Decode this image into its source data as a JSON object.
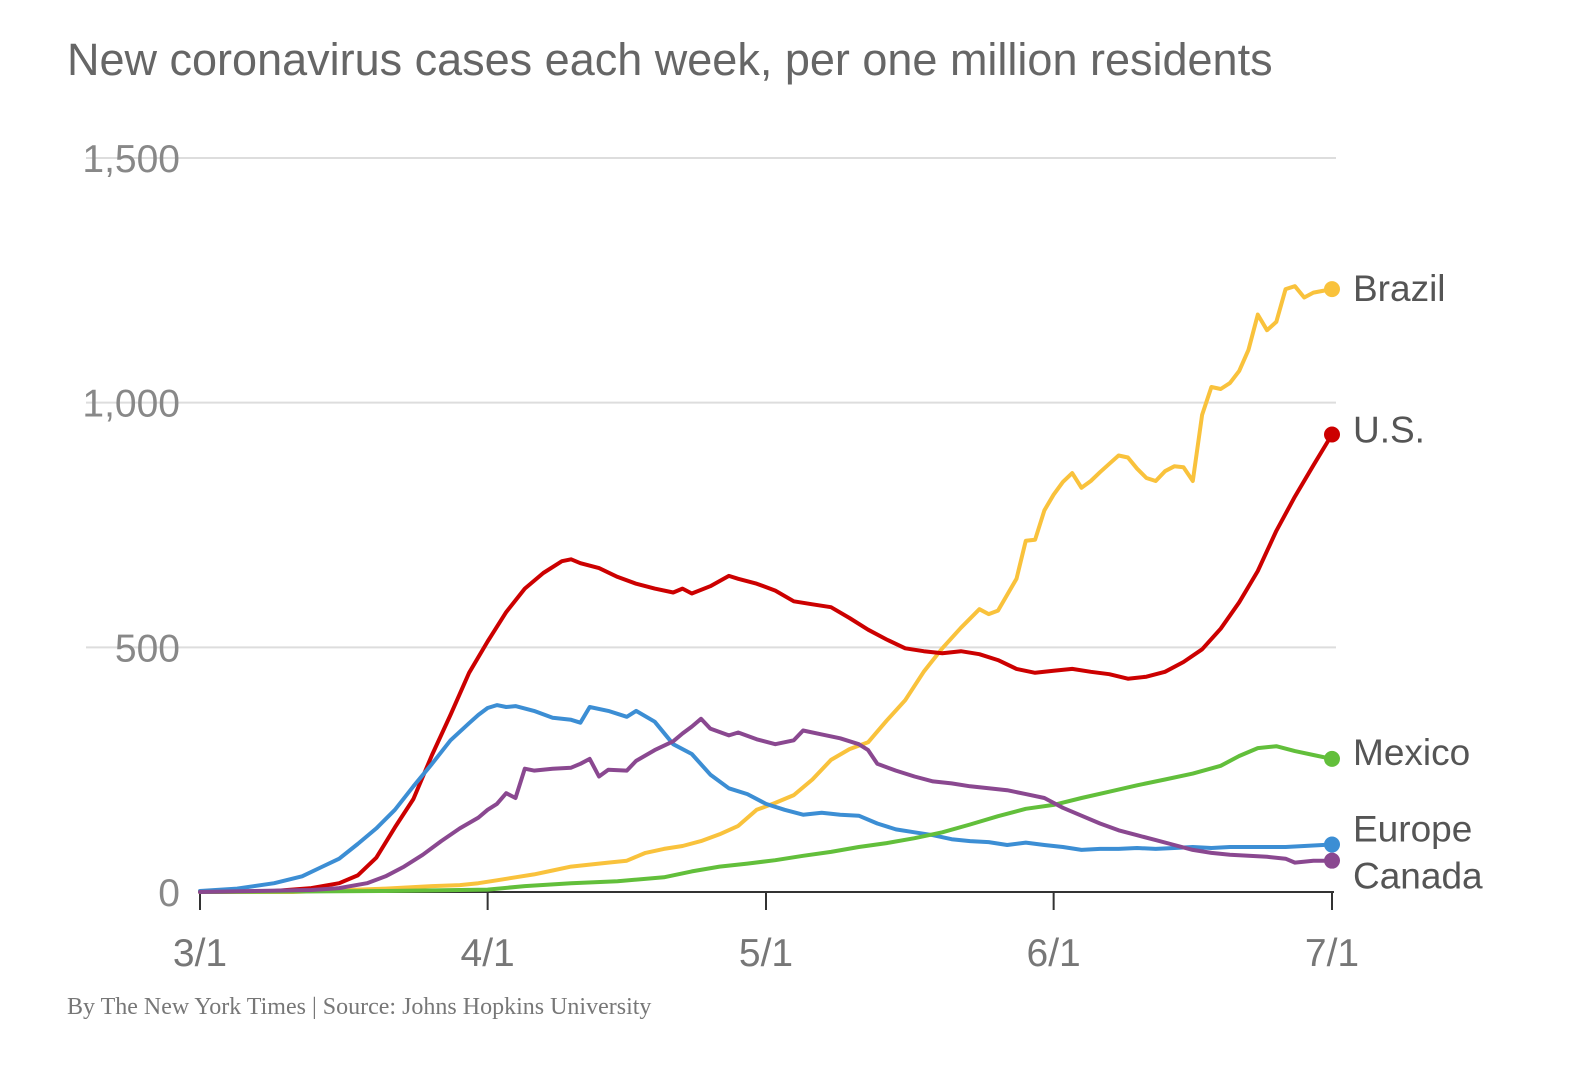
{
  "chart_data": {
    "type": "line",
    "title": "New coronavirus cases each week, per one million residents",
    "xlabel": "",
    "ylabel": "",
    "ylim": [
      0,
      1500
    ],
    "xlim": [
      "3/1",
      "7/1"
    ],
    "y_ticks": [
      {
        "value": 0,
        "label": "0"
      },
      {
        "value": 500,
        "label": "500"
      },
      {
        "value": 1000,
        "label": "1,000"
      },
      {
        "value": 1500,
        "label": "1,500"
      }
    ],
    "x_ticks": [
      {
        "day": 0,
        "label": "3/1"
      },
      {
        "day": 31,
        "label": "4/1"
      },
      {
        "day": 61,
        "label": "5/1"
      },
      {
        "day": 92,
        "label": "6/1"
      },
      {
        "day": 122,
        "label": "7/1"
      }
    ],
    "grid": true,
    "legend": "direct labels at line ends",
    "source": "By The New York Times | Source: Johns Hopkins University",
    "series": [
      {
        "name": "Brazil",
        "color": "#f9c23c",
        "points": [
          [
            0,
            0
          ],
          [
            10,
            0
          ],
          [
            20,
            7
          ],
          [
            25,
            12
          ],
          [
            28,
            14
          ],
          [
            30,
            18
          ],
          [
            32,
            24
          ],
          [
            34,
            30
          ],
          [
            36,
            36
          ],
          [
            38,
            44
          ],
          [
            40,
            52
          ],
          [
            42,
            56
          ],
          [
            44,
            60
          ],
          [
            46,
            64
          ],
          [
            48,
            80
          ],
          [
            50,
            88
          ],
          [
            52,
            94
          ],
          [
            54,
            104
          ],
          [
            56,
            118
          ],
          [
            58,
            135
          ],
          [
            60,
            168
          ],
          [
            62,
            182
          ],
          [
            64,
            198
          ],
          [
            66,
            230
          ],
          [
            68,
            270
          ],
          [
            70,
            292
          ],
          [
            72,
            306
          ],
          [
            74,
            350
          ],
          [
            76,
            392
          ],
          [
            78,
            450
          ],
          [
            80,
            498
          ],
          [
            82,
            540
          ],
          [
            84,
            578
          ],
          [
            85,
            568
          ],
          [
            86,
            575
          ],
          [
            88,
            640
          ],
          [
            89,
            718
          ],
          [
            90,
            720
          ],
          [
            91,
            780
          ],
          [
            92,
            812
          ],
          [
            93,
            838
          ],
          [
            94,
            856
          ],
          [
            95,
            826
          ],
          [
            96,
            840
          ],
          [
            97,
            858
          ],
          [
            98,
            875
          ],
          [
            99,
            892
          ],
          [
            100,
            888
          ],
          [
            101,
            865
          ],
          [
            102,
            846
          ],
          [
            103,
            840
          ],
          [
            104,
            860
          ],
          [
            105,
            870
          ],
          [
            106,
            868
          ],
          [
            107,
            840
          ],
          [
            108,
            975
          ],
          [
            109,
            1032
          ],
          [
            110,
            1028
          ],
          [
            111,
            1040
          ],
          [
            112,
            1065
          ],
          [
            113,
            1108
          ],
          [
            114,
            1180
          ],
          [
            115,
            1148
          ],
          [
            116,
            1165
          ],
          [
            117,
            1232
          ],
          [
            118,
            1238
          ],
          [
            119,
            1215
          ],
          [
            120,
            1225
          ],
          [
            122,
            1232
          ]
        ]
      },
      {
        "name": "U.S.",
        "color": "#cc0000",
        "points": [
          [
            0,
            0
          ],
          [
            8,
            2
          ],
          [
            12,
            8
          ],
          [
            15,
            18
          ],
          [
            17,
            34
          ],
          [
            19,
            70
          ],
          [
            21,
            132
          ],
          [
            23,
            190
          ],
          [
            25,
            280
          ],
          [
            27,
            362
          ],
          [
            29,
            448
          ],
          [
            31,
            512
          ],
          [
            33,
            572
          ],
          [
            35,
            620
          ],
          [
            37,
            652
          ],
          [
            39,
            676
          ],
          [
            40,
            680
          ],
          [
            41,
            672
          ],
          [
            43,
            662
          ],
          [
            45,
            644
          ],
          [
            47,
            630
          ],
          [
            49,
            620
          ],
          [
            51,
            612
          ],
          [
            52,
            620
          ],
          [
            53,
            610
          ],
          [
            55,
            625
          ],
          [
            57,
            646
          ],
          [
            58,
            640
          ],
          [
            60,
            630
          ],
          [
            62,
            616
          ],
          [
            64,
            594
          ],
          [
            66,
            588
          ],
          [
            68,
            582
          ],
          [
            70,
            560
          ],
          [
            72,
            536
          ],
          [
            74,
            516
          ],
          [
            76,
            498
          ],
          [
            78,
            492
          ],
          [
            80,
            488
          ],
          [
            82,
            492
          ],
          [
            84,
            486
          ],
          [
            86,
            474
          ],
          [
            88,
            456
          ],
          [
            90,
            448
          ],
          [
            92,
            452
          ],
          [
            94,
            456
          ],
          [
            96,
            450
          ],
          [
            98,
            445
          ],
          [
            100,
            436
          ],
          [
            102,
            440
          ],
          [
            104,
            450
          ],
          [
            106,
            470
          ],
          [
            108,
            496
          ],
          [
            110,
            538
          ],
          [
            112,
            592
          ],
          [
            114,
            656
          ],
          [
            116,
            738
          ],
          [
            118,
            808
          ],
          [
            120,
            872
          ],
          [
            122,
            935
          ]
        ]
      },
      {
        "name": "Europe",
        "color": "#3c8ed4",
        "points": [
          [
            0,
            2
          ],
          [
            4,
            7
          ],
          [
            8,
            18
          ],
          [
            11,
            32
          ],
          [
            13,
            50
          ],
          [
            15,
            68
          ],
          [
            17,
            98
          ],
          [
            19,
            130
          ],
          [
            21,
            168
          ],
          [
            23,
            216
          ],
          [
            25,
            262
          ],
          [
            27,
            310
          ],
          [
            29,
            345
          ],
          [
            30,
            362
          ],
          [
            31,
            376
          ],
          [
            32,
            382
          ],
          [
            33,
            378
          ],
          [
            34,
            380
          ],
          [
            36,
            370
          ],
          [
            38,
            356
          ],
          [
            40,
            352
          ],
          [
            41,
            346
          ],
          [
            42,
            378
          ],
          [
            44,
            370
          ],
          [
            46,
            358
          ],
          [
            47,
            370
          ],
          [
            49,
            348
          ],
          [
            51,
            302
          ],
          [
            53,
            282
          ],
          [
            55,
            240
          ],
          [
            57,
            212
          ],
          [
            59,
            200
          ],
          [
            61,
            180
          ],
          [
            63,
            168
          ],
          [
            65,
            158
          ],
          [
            67,
            162
          ],
          [
            69,
            158
          ],
          [
            71,
            156
          ],
          [
            73,
            140
          ],
          [
            75,
            128
          ],
          [
            77,
            122
          ],
          [
            79,
            116
          ],
          [
            81,
            108
          ],
          [
            83,
            104
          ],
          [
            85,
            102
          ],
          [
            87,
            96
          ],
          [
            89,
            101
          ],
          [
            91,
            96
          ],
          [
            93,
            92
          ],
          [
            95,
            86
          ],
          [
            97,
            88
          ],
          [
            99,
            88
          ],
          [
            101,
            90
          ],
          [
            103,
            88
          ],
          [
            105,
            90
          ],
          [
            107,
            92
          ],
          [
            109,
            90
          ],
          [
            111,
            92
          ],
          [
            113,
            92
          ],
          [
            115,
            92
          ],
          [
            117,
            92
          ],
          [
            119,
            94
          ],
          [
            122,
            97
          ]
        ]
      },
      {
        "name": "Mexico",
        "color": "#62bf3b",
        "points": [
          [
            0,
            0
          ],
          [
            20,
            2
          ],
          [
            31,
            5
          ],
          [
            35,
            12
          ],
          [
            40,
            18
          ],
          [
            45,
            22
          ],
          [
            50,
            30
          ],
          [
            53,
            42
          ],
          [
            56,
            52
          ],
          [
            59,
            58
          ],
          [
            62,
            65
          ],
          [
            65,
            74
          ],
          [
            68,
            82
          ],
          [
            71,
            92
          ],
          [
            74,
            100
          ],
          [
            77,
            110
          ],
          [
            80,
            122
          ],
          [
            83,
            138
          ],
          [
            86,
            155
          ],
          [
            89,
            170
          ],
          [
            92,
            178
          ],
          [
            95,
            192
          ],
          [
            98,
            205
          ],
          [
            101,
            218
          ],
          [
            104,
            230
          ],
          [
            107,
            242
          ],
          [
            110,
            258
          ],
          [
            112,
            278
          ],
          [
            114,
            294
          ],
          [
            116,
            298
          ],
          [
            118,
            288
          ],
          [
            120,
            280
          ],
          [
            122,
            272
          ]
        ]
      },
      {
        "name": "Canada",
        "color": "#8a4890",
        "points": [
          [
            0,
            0
          ],
          [
            12,
            4
          ],
          [
            15,
            8
          ],
          [
            18,
            18
          ],
          [
            20,
            32
          ],
          [
            22,
            52
          ],
          [
            24,
            76
          ],
          [
            26,
            104
          ],
          [
            28,
            130
          ],
          [
            30,
            152
          ],
          [
            31,
            168
          ],
          [
            32,
            180
          ],
          [
            33,
            202
          ],
          [
            34,
            192
          ],
          [
            35,
            252
          ],
          [
            36,
            248
          ],
          [
            38,
            252
          ],
          [
            40,
            254
          ],
          [
            41,
            262
          ],
          [
            42,
            272
          ],
          [
            43,
            236
          ],
          [
            44,
            250
          ],
          [
            46,
            248
          ],
          [
            47,
            268
          ],
          [
            49,
            290
          ],
          [
            51,
            308
          ],
          [
            52,
            324
          ],
          [
            53,
            338
          ],
          [
            54,
            354
          ],
          [
            55,
            334
          ],
          [
            57,
            320
          ],
          [
            58,
            326
          ],
          [
            60,
            312
          ],
          [
            62,
            302
          ],
          [
            64,
            310
          ],
          [
            65,
            330
          ],
          [
            67,
            322
          ],
          [
            69,
            314
          ],
          [
            71,
            302
          ],
          [
            72,
            290
          ],
          [
            73,
            262
          ],
          [
            75,
            248
          ],
          [
            77,
            236
          ],
          [
            79,
            226
          ],
          [
            81,
            222
          ],
          [
            83,
            216
          ],
          [
            85,
            212
          ],
          [
            87,
            208
          ],
          [
            89,
            200
          ],
          [
            91,
            192
          ],
          [
            93,
            172
          ],
          [
            95,
            156
          ],
          [
            97,
            140
          ],
          [
            99,
            126
          ],
          [
            101,
            116
          ],
          [
            103,
            106
          ],
          [
            105,
            96
          ],
          [
            107,
            86
          ],
          [
            109,
            80
          ],
          [
            111,
            76
          ],
          [
            113,
            74
          ],
          [
            115,
            72
          ],
          [
            117,
            68
          ],
          [
            118,
            60
          ],
          [
            120,
            64
          ],
          [
            122,
            64
          ]
        ]
      }
    ]
  }
}
